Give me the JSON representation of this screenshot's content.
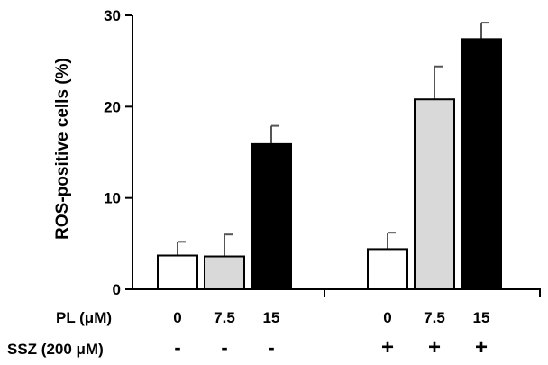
{
  "chart_data": {
    "type": "bar",
    "ylabel": "ROS-positive cells  (%)",
    "ylim": [
      0,
      30
    ],
    "yticks": [
      0,
      10,
      20,
      30
    ],
    "grid": false,
    "legend": "none",
    "row_labels": {
      "pl": "PL (μM)",
      "ssz": "SSZ (200 μM)"
    },
    "groups": [
      {
        "bars": [
          {
            "pl": "0",
            "ssz": "-",
            "value": 3.7,
            "error": 1.5,
            "fill": "#ffffff"
          },
          {
            "pl": "7.5",
            "ssz": "-",
            "value": 3.6,
            "error": 2.4,
            "fill": "#d9d9d9"
          },
          {
            "pl": "15",
            "ssz": "-",
            "value": 15.9,
            "error": 2.0,
            "fill": "#000000"
          }
        ]
      },
      {
        "bars": [
          {
            "pl": "0",
            "ssz": "+",
            "value": 4.4,
            "error": 1.8,
            "fill": "#ffffff"
          },
          {
            "pl": "7.5",
            "ssz": "+",
            "value": 20.8,
            "error": 3.6,
            "fill": "#d9d9d9"
          },
          {
            "pl": "15",
            "ssz": "+",
            "value": 27.4,
            "error": 1.8,
            "fill": "#000000"
          }
        ]
      }
    ]
  }
}
